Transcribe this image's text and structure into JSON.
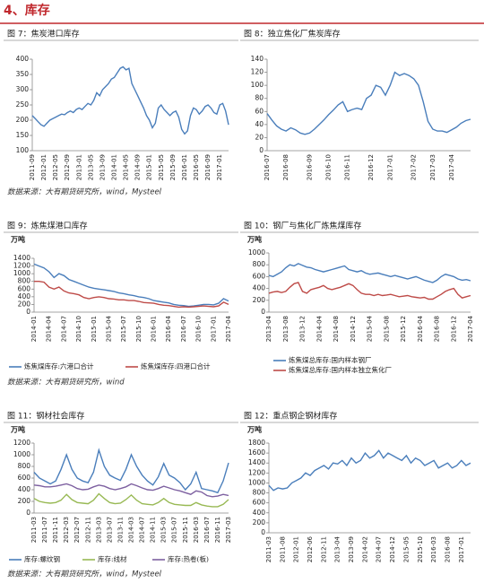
{
  "section_title": "4、库存",
  "sources": [
    "数据来源：大有期货研究所，wind，Mysteel",
    "数据来源：大有期货研究所，wind",
    "数据来源：大有期货研究所，wind，Mysteel"
  ],
  "chart_data": [
    {
      "type": "line",
      "title": "图 7：焦炭港口库存",
      "categories": [
        "2011-09",
        null,
        null,
        null,
        "2012-01",
        null,
        null,
        null,
        "2012-05",
        null,
        null,
        null,
        "2012-09",
        null,
        null,
        null,
        "2013-01",
        null,
        null,
        null,
        "2013-05",
        null,
        null,
        null,
        "2013-09",
        null,
        null,
        null,
        "2014-01",
        null,
        null,
        null,
        "2014-05",
        null,
        null,
        null,
        "2014-09",
        null,
        null,
        null,
        "2015-01",
        null,
        null,
        null,
        "2015-05",
        null,
        null,
        null,
        "2015-09",
        null,
        null,
        null,
        "2016-01",
        null,
        null,
        null,
        "2016-05",
        null,
        null,
        null,
        "2016-09",
        null,
        null,
        null,
        "2017-01",
        null,
        null,
        null
      ],
      "values": [
        215,
        205,
        195,
        185,
        180,
        190,
        200,
        205,
        210,
        215,
        220,
        218,
        225,
        230,
        225,
        235,
        240,
        235,
        245,
        255,
        250,
        265,
        290,
        280,
        300,
        310,
        320,
        335,
        340,
        355,
        370,
        375,
        365,
        370,
        320,
        300,
        280,
        260,
        240,
        215,
        200,
        175,
        190,
        240,
        250,
        235,
        225,
        215,
        225,
        230,
        210,
        170,
        155,
        165,
        215,
        240,
        235,
        220,
        230,
        245,
        250,
        240,
        225,
        220,
        250,
        255,
        230,
        185
      ],
      "color": "#4a7ebb",
      "ylim": [
        100,
        400
      ],
      "yticks": [
        100,
        150,
        200,
        250,
        300,
        350,
        400
      ]
    },
    {
      "type": "line",
      "title": "图 8：独立焦化厂焦炭库存",
      "categories": [
        "2016-07",
        null,
        null,
        null,
        "2016-08",
        null,
        null,
        null,
        null,
        "2016-09",
        null,
        null,
        null,
        "2016-10",
        null,
        null,
        null,
        "2016-11",
        null,
        null,
        null,
        null,
        "2016-12",
        null,
        null,
        null,
        "2017-01",
        null,
        null,
        null,
        null,
        "2017-02",
        null,
        null,
        null,
        "2017-03",
        null,
        null,
        null,
        "2017-04",
        null,
        null,
        null,
        null
      ],
      "values": [
        57,
        47,
        38,
        33,
        30,
        35,
        32,
        27,
        25,
        27,
        33,
        40,
        47,
        55,
        62,
        70,
        75,
        60,
        63,
        65,
        63,
        80,
        85,
        100,
        97,
        85,
        100,
        120,
        115,
        118,
        115,
        110,
        100,
        75,
        45,
        33,
        30,
        30,
        28,
        32,
        36,
        42,
        46,
        48
      ],
      "color": "#4a7ebb",
      "ylim": [
        0,
        140
      ],
      "yticks": [
        0,
        20,
        40,
        60,
        80,
        100,
        120,
        140
      ]
    },
    {
      "type": "line",
      "title": "图 9：炼焦煤港口库存",
      "unit": "万吨",
      "categories": [
        "2014-01",
        null,
        null,
        "2014-04",
        null,
        null,
        "2014-07",
        null,
        null,
        "2014-10",
        null,
        null,
        "2015-01",
        null,
        null,
        "2015-04",
        null,
        null,
        "2015-07",
        null,
        null,
        "2015-10",
        null,
        null,
        "2016-01",
        null,
        null,
        "2016-04",
        null,
        null,
        "2016-07",
        null,
        null,
        "2016-10",
        null,
        null,
        "2017-01",
        null,
        null,
        "2017-04"
      ],
      "series": [
        {
          "name": "炼焦煤库存:六港口合计",
          "color": "#4a7ebb",
          "values": [
            1250,
            1200,
            1150,
            1050,
            900,
            1000,
            950,
            850,
            800,
            750,
            700,
            650,
            620,
            600,
            580,
            560,
            540,
            500,
            480,
            450,
            430,
            400,
            380,
            350,
            300,
            280,
            260,
            240,
            200,
            180,
            170,
            150,
            160,
            180,
            200,
            200,
            190,
            230,
            350,
            290
          ]
        },
        {
          "name": "炼焦煤库存:四港口合计",
          "color": "#be4b48",
          "values": [
            800,
            800,
            780,
            650,
            600,
            650,
            550,
            500,
            480,
            450,
            380,
            350,
            380,
            400,
            380,
            350,
            340,
            320,
            320,
            300,
            300,
            280,
            250,
            240,
            230,
            200,
            180,
            170,
            150,
            130,
            140,
            130,
            140,
            150,
            160,
            150,
            140,
            160,
            260,
            200
          ]
        }
      ],
      "ylim": [
        0,
        1400
      ],
      "yticks": [
        0,
        200,
        400,
        600,
        800,
        1000,
        1200,
        1400
      ]
    },
    {
      "type": "line",
      "title": "图 10：钢厂与焦化厂炼焦煤库存",
      "unit": "万吨",
      "categories": [
        "2013-04",
        null,
        null,
        null,
        "2013-08",
        null,
        null,
        null,
        "2013-12",
        null,
        null,
        null,
        "2014-04",
        null,
        null,
        null,
        "2014-08",
        null,
        null,
        null,
        "2014-12",
        null,
        null,
        null,
        "2015-04",
        null,
        null,
        null,
        "2015-08",
        null,
        null,
        null,
        "2015-12",
        null,
        null,
        null,
        "2016-04",
        null,
        null,
        null,
        "2016-08",
        null,
        null,
        null,
        "2016-12",
        null,
        null,
        null,
        "2017-04"
      ],
      "series": [
        {
          "name": "炼焦煤总库存:国内样本钢厂",
          "color": "#4a7ebb",
          "values": [
            620,
            600,
            640,
            680,
            750,
            800,
            780,
            820,
            790,
            760,
            750,
            720,
            700,
            680,
            700,
            720,
            740,
            760,
            780,
            720,
            700,
            680,
            700,
            660,
            640,
            650,
            660,
            640,
            620,
            600,
            620,
            600,
            580,
            560,
            580,
            600,
            570,
            540,
            520,
            500,
            540,
            600,
            640,
            620,
            600,
            560,
            540,
            550,
            530
          ]
        },
        {
          "name": "炼焦煤总库存:国内样本独立焦化厂",
          "color": "#be4b48",
          "values": [
            320,
            340,
            350,
            330,
            350,
            420,
            480,
            500,
            350,
            320,
            380,
            400,
            420,
            450,
            400,
            380,
            400,
            420,
            450,
            480,
            450,
            380,
            320,
            300,
            300,
            280,
            300,
            280,
            290,
            300,
            280,
            260,
            270,
            280,
            260,
            250,
            240,
            250,
            220,
            220,
            260,
            300,
            350,
            380,
            400,
            300,
            240,
            260,
            280
          ]
        }
      ],
      "ylim": [
        0,
        1000
      ],
      "yticks": [
        0,
        200,
        400,
        600,
        800,
        1000
      ]
    },
    {
      "type": "line",
      "title": "图 11：钢材社会库存",
      "unit": "万吨",
      "categories": [
        "2011-03",
        null,
        "2011-07",
        null,
        "2011-11",
        null,
        "2012-03",
        null,
        "2012-07",
        null,
        "2012-11",
        null,
        "2013-03",
        null,
        "2013-07",
        null,
        "2013-11",
        null,
        "2014-03",
        null,
        "2014-07",
        null,
        "2014-11",
        null,
        "2015-03",
        null,
        "2015-07",
        null,
        "2015-11",
        null,
        "2016-03",
        null,
        "2016-07",
        null,
        "2016-11",
        null,
        "2017-03"
      ],
      "series": [
        {
          "name": "库存:螺纹钢",
          "color": "#4a7ebb",
          "values": [
            700,
            600,
            550,
            500,
            550,
            750,
            1000,
            750,
            600,
            550,
            520,
            700,
            1080,
            800,
            650,
            600,
            560,
            750,
            1000,
            800,
            650,
            550,
            480,
            620,
            850,
            650,
            600,
            520,
            400,
            500,
            700,
            420,
            400,
            380,
            350,
            550,
            860
          ]
        },
        {
          "name": "库存:线材",
          "color": "#98b954",
          "values": [
            250,
            200,
            180,
            170,
            180,
            220,
            320,
            230,
            180,
            170,
            160,
            220,
            330,
            250,
            180,
            160,
            170,
            230,
            310,
            220,
            160,
            150,
            140,
            180,
            250,
            180,
            150,
            140,
            130,
            130,
            180,
            140,
            120,
            110,
            110,
            150,
            230
          ]
        },
        {
          "name": "库存:热卷(板)",
          "color": "#7d60a0",
          "values": [
            480,
            470,
            450,
            450,
            460,
            480,
            500,
            470,
            420,
            400,
            410,
            450,
            480,
            460,
            420,
            400,
            420,
            450,
            500,
            470,
            430,
            400,
            390,
            420,
            460,
            430,
            400,
            380,
            350,
            320,
            380,
            360,
            300,
            280,
            290,
            320,
            300
          ]
        }
      ],
      "ylim": [
        0,
        1200
      ],
      "yticks": [
        0,
        200,
        400,
        600,
        800,
        1000,
        1200
      ]
    },
    {
      "type": "line",
      "title": "图 12：重点钢企钢材库存",
      "unit": "万吨",
      "categories": [
        "2011-03",
        null,
        null,
        "2011-08",
        null,
        null,
        "2012-01",
        null,
        null,
        "2012-06",
        null,
        null,
        "2012-11",
        null,
        null,
        "2013-04",
        null,
        null,
        "2013-09",
        null,
        null,
        "2014-02",
        null,
        null,
        "2014-07",
        null,
        null,
        "2014-12",
        null,
        null,
        "2015-05",
        null,
        null,
        "2015-10",
        null,
        null,
        "2016-03",
        null,
        null,
        "2016-08",
        null,
        null,
        "2017-01",
        null,
        null
      ],
      "values": [
        950,
        850,
        900,
        880,
        900,
        1000,
        1050,
        1100,
        1200,
        1150,
        1250,
        1300,
        1350,
        1280,
        1400,
        1380,
        1450,
        1350,
        1500,
        1400,
        1450,
        1600,
        1500,
        1550,
        1650,
        1500,
        1600,
        1550,
        1500,
        1450,
        1550,
        1400,
        1500,
        1450,
        1350,
        1400,
        1450,
        1300,
        1350,
        1400,
        1300,
        1350,
        1450,
        1350,
        1400
      ],
      "color": "#4a7ebb",
      "ylim": [
        0,
        1800
      ],
      "yticks": [
        0,
        200,
        400,
        600,
        800,
        1000,
        1200,
        1400,
        1600,
        1800
      ]
    }
  ]
}
